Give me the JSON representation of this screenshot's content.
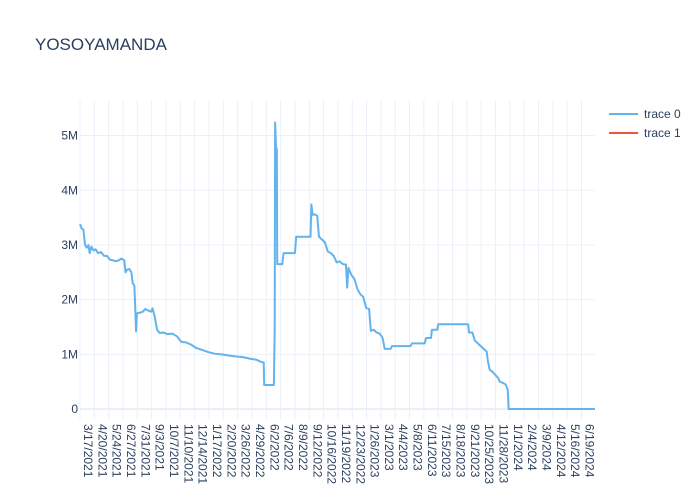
{
  "chart_data": {
    "type": "line",
    "title": "YOSOYAMANDA",
    "xlabel": "",
    "ylabel": "",
    "x_range": [
      "2021-03-17",
      "2024-07-21"
    ],
    "ylim": [
      -200000,
      5650000
    ],
    "grid": true,
    "legend_placement": "top-right",
    "x_tick_labels": [
      "3/17/2021",
      "4/20/2021",
      "5/24/2021",
      "6/27/2021",
      "7/31/2021",
      "9/3/2021",
      "10/7/2021",
      "11/10/2021",
      "12/14/2021",
      "1/17/2022",
      "2/20/2022",
      "3/26/2022",
      "4/29/2022",
      "6/2/2022",
      "7/6/2022",
      "8/9/2022",
      "9/12/2022",
      "10/16/2022",
      "11/19/2022",
      "12/23/2022",
      "1/26/2023",
      "3/1/2023",
      "4/4/2023",
      "5/8/2023",
      "6/11/2023",
      "7/15/2023",
      "8/18/2023",
      "9/21/2023",
      "10/25/2023",
      "11/28/2023",
      "1/1/2024",
      "2/4/2024",
      "3/9/2024",
      "4/12/2024",
      "5/16/2024",
      "6/19/2024"
    ],
    "y_ticks": [
      {
        "value": 0,
        "label": "0"
      },
      {
        "value": 1000000,
        "label": "1M"
      },
      {
        "value": 2000000,
        "label": "2M"
      },
      {
        "value": 3000000,
        "label": "3M"
      },
      {
        "value": 4000000,
        "label": "4M"
      },
      {
        "value": 5000000,
        "label": "5M"
      }
    ],
    "series": [
      {
        "name": "trace 0",
        "color": "#63b3ed",
        "points": [
          [
            "2021-03-17",
            3380000
          ],
          [
            "2021-03-21",
            3300000
          ],
          [
            "2021-03-25",
            3280000
          ],
          [
            "2021-03-29",
            3000000
          ],
          [
            "2021-04-02",
            2950000
          ],
          [
            "2021-04-06",
            3000000
          ],
          [
            "2021-04-09",
            2850000
          ],
          [
            "2021-04-13",
            2970000
          ],
          [
            "2021-04-18",
            2900000
          ],
          [
            "2021-04-23",
            2920000
          ],
          [
            "2021-04-29",
            2850000
          ],
          [
            "2021-05-06",
            2870000
          ],
          [
            "2021-05-13",
            2800000
          ],
          [
            "2021-05-20",
            2800000
          ],
          [
            "2021-05-27",
            2730000
          ],
          [
            "2021-06-03",
            2720000
          ],
          [
            "2021-06-10",
            2700000
          ],
          [
            "2021-06-17",
            2720000
          ],
          [
            "2021-06-23",
            2750000
          ],
          [
            "2021-06-30",
            2720000
          ],
          [
            "2021-07-03",
            2500000
          ],
          [
            "2021-07-07",
            2550000
          ],
          [
            "2021-07-12",
            2560000
          ],
          [
            "2021-07-17",
            2500000
          ],
          [
            "2021-07-20",
            2300000
          ],
          [
            "2021-07-24",
            2260000
          ],
          [
            "2021-07-27",
            1650000
          ],
          [
            "2021-07-28",
            1420000
          ],
          [
            "2021-07-30",
            1750000
          ],
          [
            "2021-08-06",
            1760000
          ],
          [
            "2021-08-13",
            1780000
          ],
          [
            "2021-08-19",
            1830000
          ],
          [
            "2021-08-26",
            1800000
          ],
          [
            "2021-09-02",
            1780000
          ],
          [
            "2021-09-05",
            1840000
          ],
          [
            "2021-09-10",
            1700000
          ],
          [
            "2021-09-16",
            1450000
          ],
          [
            "2021-09-22",
            1390000
          ],
          [
            "2021-10-01",
            1400000
          ],
          [
            "2021-10-10",
            1370000
          ],
          [
            "2021-10-22",
            1380000
          ],
          [
            "2021-11-02",
            1330000
          ],
          [
            "2021-11-12",
            1230000
          ],
          [
            "2021-11-23",
            1220000
          ],
          [
            "2021-12-05",
            1180000
          ],
          [
            "2021-12-17",
            1120000
          ],
          [
            "2022-01-01",
            1080000
          ],
          [
            "2022-01-16",
            1040000
          ],
          [
            "2022-02-01",
            1010000
          ],
          [
            "2022-02-16",
            1000000
          ],
          [
            "2022-03-05",
            980000
          ],
          [
            "2022-03-22",
            960000
          ],
          [
            "2022-04-08",
            950000
          ],
          [
            "2022-04-25",
            920000
          ],
          [
            "2022-05-11",
            900000
          ],
          [
            "2022-05-18",
            870000
          ],
          [
            "2022-05-27",
            850000
          ],
          [
            "2022-05-28",
            440000
          ],
          [
            "2022-06-20",
            440000
          ],
          [
            "2022-06-22",
            1500000
          ],
          [
            "2022-06-23",
            5240000
          ],
          [
            "2022-06-25",
            4800000
          ],
          [
            "2022-06-27",
            4750000
          ],
          [
            "2022-06-28",
            2650000
          ],
          [
            "2022-07-10",
            2650000
          ],
          [
            "2022-07-13",
            2850000
          ],
          [
            "2022-08-09",
            2850000
          ],
          [
            "2022-08-12",
            3150000
          ],
          [
            "2022-09-15",
            3150000
          ],
          [
            "2022-09-17",
            3740000
          ],
          [
            "2022-09-20",
            3550000
          ],
          [
            "2022-09-25",
            3560000
          ],
          [
            "2022-10-01",
            3530000
          ],
          [
            "2022-10-05",
            3150000
          ],
          [
            "2022-10-12",
            3100000
          ],
          [
            "2022-10-19",
            3050000
          ],
          [
            "2022-10-26",
            2880000
          ],
          [
            "2022-11-02",
            2850000
          ],
          [
            "2022-11-09",
            2800000
          ],
          [
            "2022-11-16",
            2680000
          ],
          [
            "2022-11-23",
            2700000
          ],
          [
            "2022-12-01",
            2650000
          ],
          [
            "2022-12-08",
            2640000
          ],
          [
            "2022-12-11",
            2220000
          ],
          [
            "2022-12-14",
            2580000
          ],
          [
            "2022-12-21",
            2450000
          ],
          [
            "2022-12-28",
            2380000
          ],
          [
            "2023-01-04",
            2200000
          ],
          [
            "2023-01-11",
            2100000
          ],
          [
            "2023-01-18",
            2050000
          ],
          [
            "2023-01-25",
            1850000
          ],
          [
            "2023-02-01",
            1830000
          ],
          [
            "2023-02-05",
            1430000
          ],
          [
            "2023-02-12",
            1450000
          ],
          [
            "2023-02-19",
            1400000
          ],
          [
            "2023-02-26",
            1380000
          ],
          [
            "2023-03-05",
            1300000
          ],
          [
            "2023-03-10",
            1100000
          ],
          [
            "2023-03-24",
            1100000
          ],
          [
            "2023-03-27",
            1150000
          ],
          [
            "2023-05-10",
            1150000
          ],
          [
            "2023-05-14",
            1200000
          ],
          [
            "2023-06-13",
            1200000
          ],
          [
            "2023-06-16",
            1300000
          ],
          [
            "2023-06-28",
            1300000
          ],
          [
            "2023-06-30",
            1450000
          ],
          [
            "2023-07-13",
            1450000
          ],
          [
            "2023-07-15",
            1550000
          ],
          [
            "2023-09-24",
            1550000
          ],
          [
            "2023-09-26",
            1400000
          ],
          [
            "2023-10-04",
            1400000
          ],
          [
            "2023-10-10",
            1250000
          ],
          [
            "2023-10-17",
            1200000
          ],
          [
            "2023-10-24",
            1150000
          ],
          [
            "2023-10-31",
            1100000
          ],
          [
            "2023-11-07",
            1050000
          ],
          [
            "2023-11-10",
            870000
          ],
          [
            "2023-11-14",
            720000
          ],
          [
            "2023-11-21",
            680000
          ],
          [
            "2023-11-28",
            620000
          ],
          [
            "2023-12-05",
            560000
          ],
          [
            "2023-12-08",
            500000
          ],
          [
            "2023-12-15",
            480000
          ],
          [
            "2023-12-22",
            450000
          ],
          [
            "2023-12-27",
            350000
          ],
          [
            "2023-12-29",
            0
          ],
          [
            "2024-07-21",
            0
          ]
        ]
      },
      {
        "name": "trace 1",
        "color": "#ef553b",
        "points": []
      }
    ]
  }
}
